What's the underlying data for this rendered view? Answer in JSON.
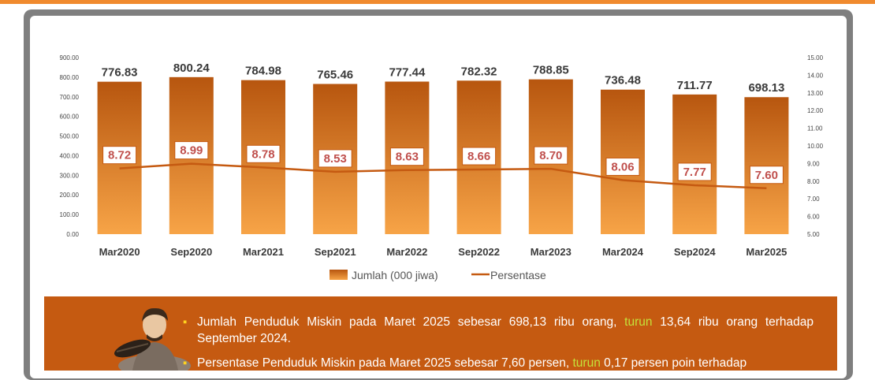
{
  "chart_data": {
    "type": "bar",
    "categories": [
      "Mar2020",
      "Sep2020",
      "Mar2021",
      "Sep2021",
      "Mar2022",
      "Sep2022",
      "Mar2023",
      "Mar2024",
      "Sep2024",
      "Mar2025"
    ],
    "series": [
      {
        "name": "Jumlah (000 jiwa)",
        "type": "bar",
        "axis": "left",
        "values": [
          776.83,
          800.24,
          784.98,
          765.46,
          777.44,
          782.32,
          788.85,
          736.48,
          711.77,
          698.13
        ],
        "labels": [
          "776.83",
          "800.24",
          "784.98",
          "765.46",
          "777.44",
          "782.32",
          "788.85",
          "736.48",
          "711.77",
          "698.13"
        ]
      },
      {
        "name": "Persentase",
        "type": "line",
        "axis": "right",
        "values": [
          8.72,
          8.99,
          8.78,
          8.53,
          8.63,
          8.66,
          8.7,
          8.06,
          7.77,
          7.6
        ],
        "labels": [
          "8.72",
          "8.99",
          "8.78",
          "8.53",
          "8.63",
          "8.66",
          "8.70",
          "8.06",
          "7.77",
          "7.60"
        ]
      }
    ],
    "y_left": {
      "range": [
        0,
        900
      ],
      "ticks": [
        "0.00",
        "100.00",
        "200.00",
        "300.00",
        "400.00",
        "500.00",
        "600.00",
        "700.00",
        "800.00",
        "900.00"
      ]
    },
    "y_right": {
      "range": [
        5,
        15
      ],
      "ticks": [
        "5.00",
        "6.00",
        "7.00",
        "8.00",
        "9.00",
        "10.00",
        "11.00",
        "12.00",
        "13.00",
        "14.00",
        "15.00"
      ]
    },
    "legend": {
      "position": "bottom",
      "bar_label": "Jumlah (000 jiwa)",
      "line_label": "Persentase"
    },
    "colors": {
      "bar_top": "#b7560f",
      "bar_bottom": "#f7a447",
      "line": "#c55a11",
      "label_box_border": "#c55a11",
      "label_text": "#c0504d"
    }
  },
  "info": {
    "bullet1": {
      "pre": "Jumlah Penduduk Miskin pada Maret 2025 sebesar 698,13 ribu orang,",
      "hl": "turun",
      "post": "13,64 ribu orang terhadap September 2024."
    },
    "bullet2": {
      "pre": "Persentase Penduduk Miskin pada Maret 2025 sebesar 7,60 persen,",
      "hl": "turun",
      "post": "0,17 persen poin terhadap"
    }
  }
}
